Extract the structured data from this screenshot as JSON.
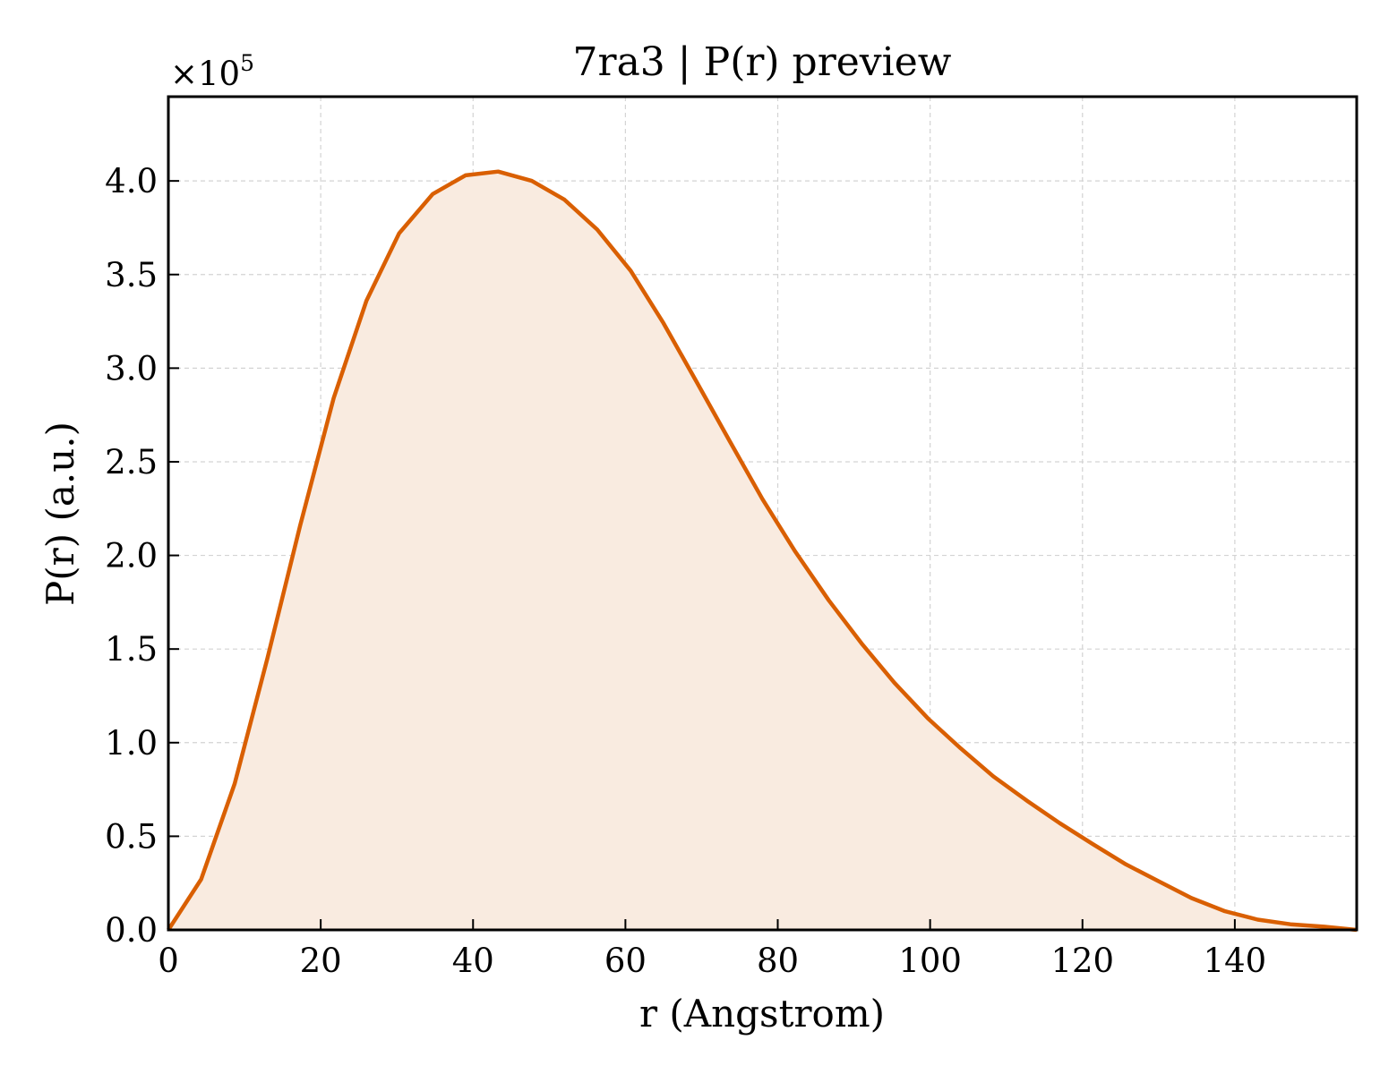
{
  "chart_data": {
    "type": "area",
    "title": "7ra3 | P(r) preview",
    "xlabel": "r (Angstrom)",
    "ylabel": "P(r) (a.u.)",
    "y_multiplier_label": "×10",
    "y_multiplier_exponent": "5",
    "xlim": [
      0,
      156
    ],
    "ylim": [
      0,
      4.45
    ],
    "xticks": [
      0,
      20,
      40,
      60,
      80,
      100,
      120,
      140
    ],
    "yticks": [
      0.0,
      0.5,
      1.0,
      1.5,
      2.0,
      2.5,
      3.0,
      3.5,
      4.0
    ],
    "ytick_labels": [
      "0.0",
      "0.5",
      "1.0",
      "1.5",
      "2.0",
      "2.5",
      "3.0",
      "3.5",
      "4.0"
    ],
    "grid": true,
    "line_color": "#d95f02",
    "fill_color": "#f9ebe0",
    "series": [
      {
        "x": [
          0,
          4.3,
          8.7,
          13.0,
          17.3,
          21.7,
          26.0,
          30.3,
          34.7,
          39.0,
          43.3,
          47.7,
          52.0,
          56.3,
          60.7,
          65.0,
          69.3,
          73.7,
          78.0,
          82.3,
          86.7,
          91.0,
          95.3,
          99.7,
          104.0,
          108.3,
          112.7,
          117.0,
          121.3,
          125.7,
          130.0,
          134.3,
          138.7,
          143.0,
          147.3,
          151.7,
          156.0
        ],
        "y": [
          0.0,
          0.27,
          0.78,
          1.45,
          2.16,
          2.84,
          3.36,
          3.72,
          3.93,
          4.03,
          4.05,
          4.0,
          3.9,
          3.74,
          3.52,
          3.24,
          2.93,
          2.61,
          2.3,
          2.02,
          1.76,
          1.53,
          1.32,
          1.13,
          0.97,
          0.82,
          0.69,
          0.57,
          0.46,
          0.35,
          0.26,
          0.17,
          0.1,
          0.055,
          0.03,
          0.017,
          0.0
        ]
      }
    ]
  }
}
